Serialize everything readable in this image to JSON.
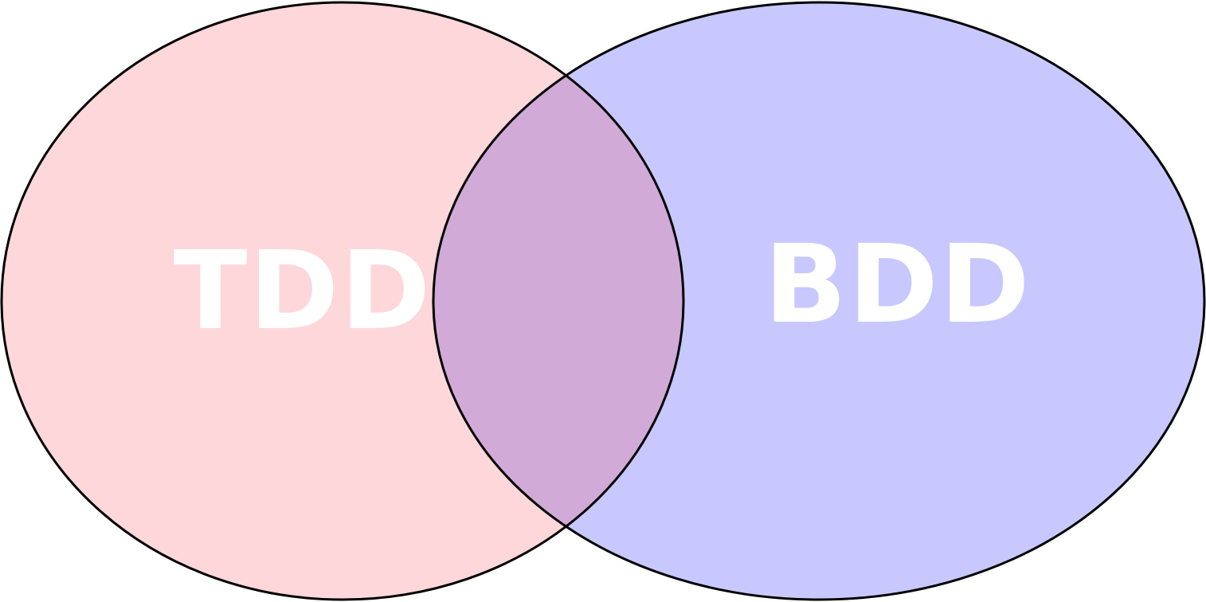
{
  "sets": [
    {
      "id": "left",
      "label": "TDD",
      "fill": "#fdd7da"
    },
    {
      "id": "right",
      "label": "BDD",
      "fill": "#c8c8ff"
    }
  ],
  "intersection": {
    "fill": "#d1aad8"
  },
  "style": {
    "outline": "#000000",
    "label_color": "#ffffff",
    "background": "#ffffff"
  }
}
